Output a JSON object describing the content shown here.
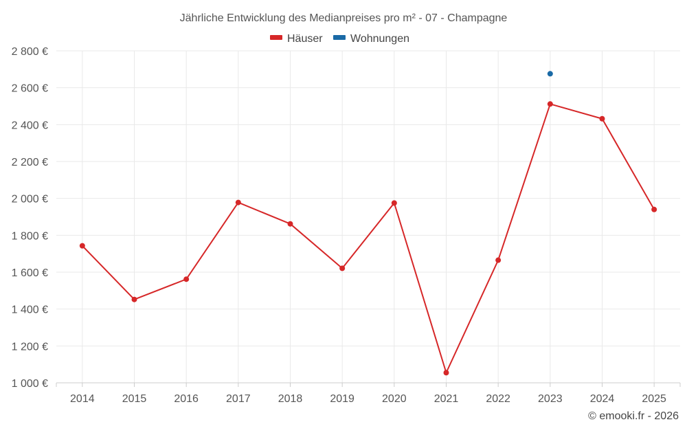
{
  "chart_data": {
    "type": "line",
    "title": "Jährliche Entwicklung des Medianpreises pro m² - 07 - Champagne",
    "xlabel": "",
    "ylabel": "",
    "categories": [
      "2014",
      "2015",
      "2016",
      "2017",
      "2018",
      "2019",
      "2020",
      "2021",
      "2022",
      "2023",
      "2024",
      "2025"
    ],
    "series": [
      {
        "name": "Häuser",
        "color": "#d62728",
        "values": [
          1743,
          1452,
          1562,
          1978,
          1862,
          1621,
          1975,
          1055,
          1665,
          2512,
          2432,
          1940
        ]
      },
      {
        "name": "Wohnungen",
        "color": "#1a6aa6",
        "values": [
          null,
          null,
          null,
          null,
          null,
          null,
          null,
          null,
          null,
          2676,
          null,
          null
        ]
      }
    ],
    "ylim": [
      1000,
      2800
    ],
    "yticks": [
      1000,
      1200,
      1400,
      1600,
      1800,
      2000,
      2200,
      2400,
      2600,
      2800
    ],
    "ytick_labels": [
      "1 000 €",
      "1 200 €",
      "1 400 €",
      "1 600 €",
      "1 800 €",
      "2 000 €",
      "2 200 €",
      "2 400 €",
      "2 600 €",
      "2 800 €"
    ],
    "grid": true,
    "legend_position": "top-center"
  },
  "credit": "© emooki.fr - 2026"
}
